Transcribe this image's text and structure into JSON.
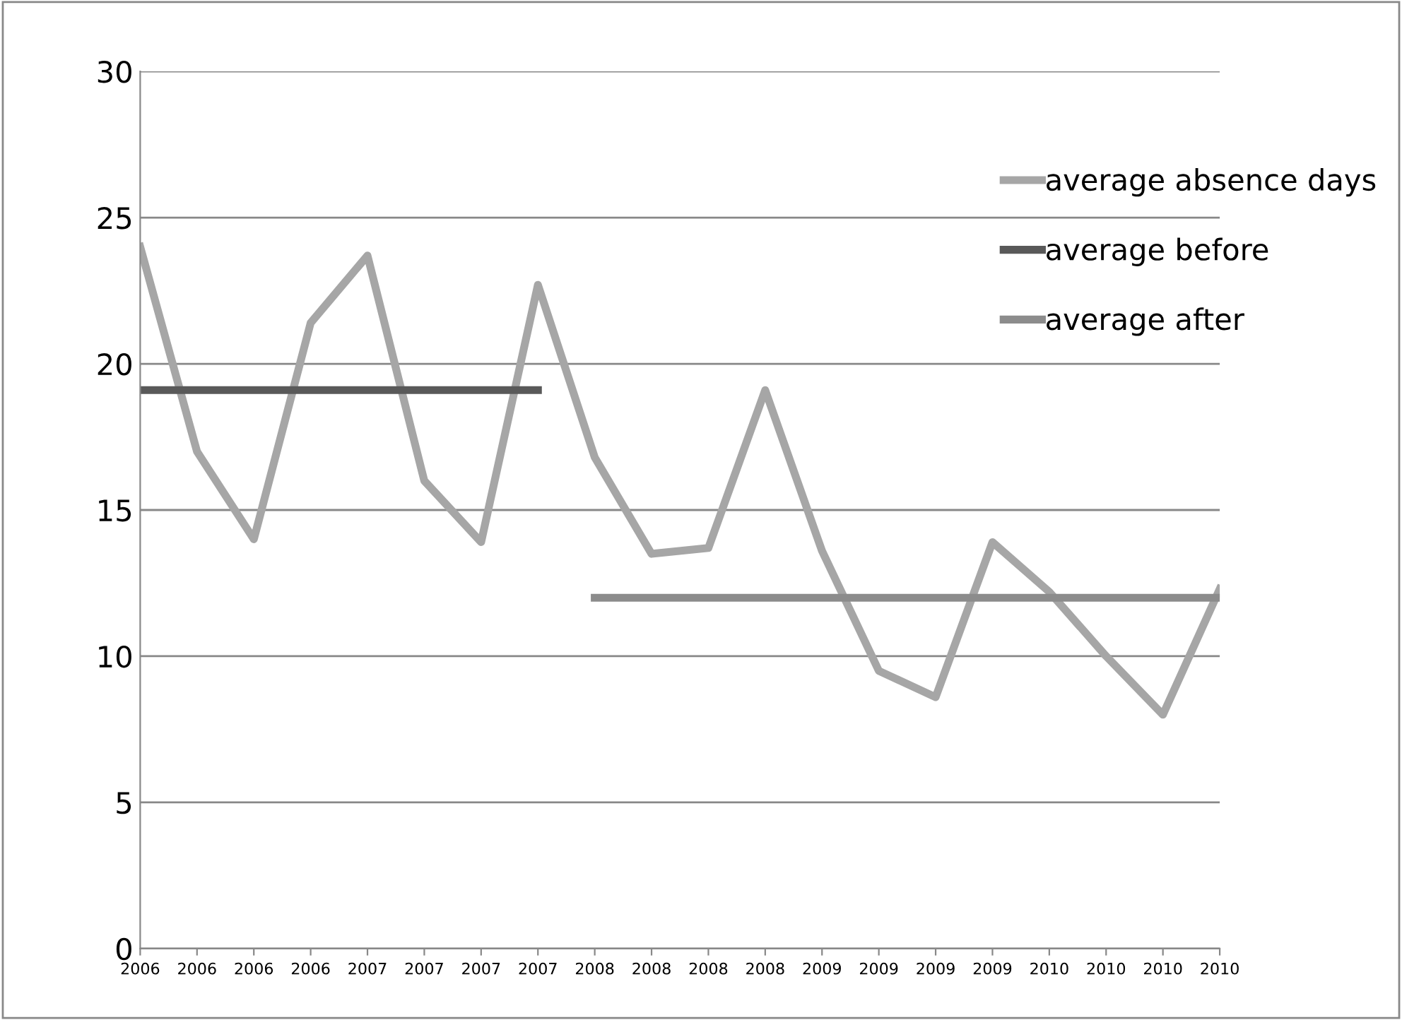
{
  "chart_data": {
    "type": "line",
    "categories": [
      "2006",
      "2006",
      "2006",
      "2006",
      "2007",
      "2007",
      "2007",
      "2007",
      "2008",
      "2008",
      "2008",
      "2008",
      "2009",
      "2009",
      "2009",
      "2009",
      "2010",
      "2010",
      "2010",
      "2010"
    ],
    "series": [
      {
        "name": "average absence days",
        "color": "#a6a6a6",
        "values": [
          24,
          17,
          14,
          21.4,
          23.7,
          16,
          13.9,
          22.7,
          16.8,
          13.5,
          13.7,
          19.1,
          13.6,
          9.5,
          8.6,
          13.9,
          12.2,
          10,
          8,
          12.3
        ]
      },
      {
        "name": "average before",
        "color": "#595959",
        "values": [
          19.1,
          19.1,
          19.1,
          19.1,
          19.1,
          19.1,
          19.1,
          19.1,
          null,
          null,
          null,
          null,
          null,
          null,
          null,
          null,
          null,
          null,
          null,
          null
        ]
      },
      {
        "name": "average after",
        "color": "#8c8c8c",
        "values": [
          null,
          null,
          null,
          null,
          null,
          null,
          null,
          null,
          12,
          12,
          12,
          12,
          12,
          12,
          12,
          12,
          12,
          12,
          12,
          12
        ]
      }
    ],
    "ylim": [
      0,
      30
    ],
    "yticks": [
      0,
      5,
      10,
      15,
      20,
      25,
      30
    ],
    "grid": "y",
    "legend": "top right",
    "marker": "none",
    "line_style": "solid"
  }
}
